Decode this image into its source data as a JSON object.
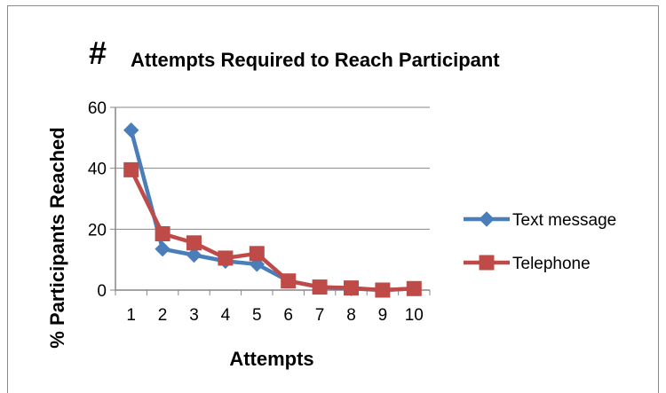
{
  "chart_data": {
    "type": "line",
    "title_prefix": "#",
    "title": "Attempts Required to Reach Participant",
    "xlabel": "Attempts",
    "ylabel": "% Participants Reached",
    "categories": [
      "1",
      "2",
      "3",
      "4",
      "5",
      "6",
      "7",
      "8",
      "9",
      "10"
    ],
    "ylim": [
      0,
      60
    ],
    "yticks": [
      "0",
      "20",
      "40",
      "60"
    ],
    "grid": "horizontal",
    "legend_position": "right",
    "series": [
      {
        "name": "Text message",
        "color": "#4a7ebb",
        "marker": "diamond",
        "values": [
          52.5,
          13.5,
          11.5,
          9.5,
          8.5,
          3,
          1,
          0.5,
          0,
          0.5
        ]
      },
      {
        "name": "Telephone",
        "color": "#be4b48",
        "marker": "square",
        "values": [
          39.5,
          18.5,
          15.5,
          10.5,
          12,
          3,
          1,
          0.7,
          0,
          0.5
        ]
      }
    ]
  }
}
